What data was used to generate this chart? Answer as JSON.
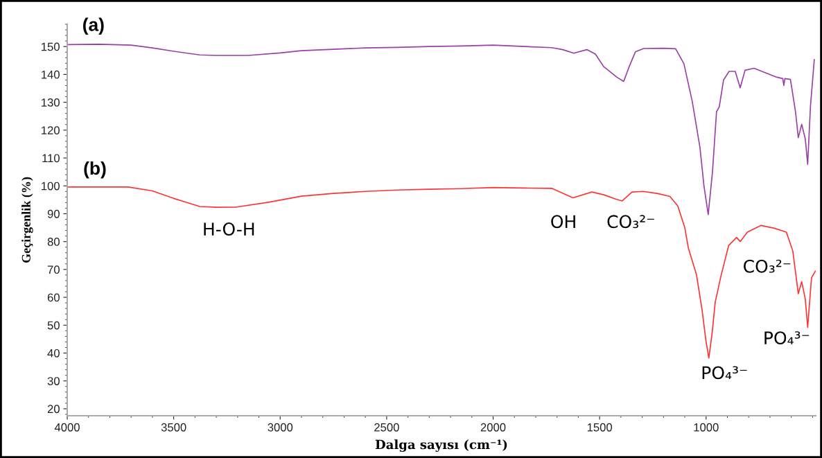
{
  "chart_data": {
    "type": "line",
    "xlabel": "Dalga sayısı (cm⁻¹)",
    "ylabel": "Geçirgenlik (%)",
    "xlim": [
      4000,
      485
    ],
    "ylim": [
      17.5,
      158
    ],
    "xticks": [
      4000,
      3500,
      3000,
      2500,
      2000,
      1500,
      1000
    ],
    "yticks": [
      20,
      30,
      40,
      50,
      60,
      70,
      80,
      90,
      100,
      110,
      120,
      130,
      140,
      150
    ],
    "grid": false,
    "legend": false,
    "marker": "none",
    "line_style": "solid",
    "series": [
      {
        "color": "#9b3fa8",
        "x": [
          4000,
          3850,
          3700,
          3600,
          3500,
          3378,
          3300,
          3150,
          3000,
          2900,
          2750,
          2600,
          2450,
          2300,
          2150,
          2000,
          1850,
          1725,
          1673,
          1621,
          1560,
          1520,
          1481,
          1419,
          1387,
          1360,
          1332,
          1293,
          1200,
          1143,
          1104,
          1065,
          1029,
          1010,
          990,
          970,
          951,
          938,
          918,
          892,
          863,
          840,
          817,
          775,
          668,
          640,
          635,
          630,
          604,
          580,
          567,
          551,
          534,
          523,
          510,
          492
        ],
        "values": [
          150.7,
          150.8,
          150.5,
          149.5,
          148.3,
          147,
          146.8,
          146.8,
          147.7,
          148.5,
          149,
          149.5,
          149.7,
          150,
          150.2,
          150.5,
          150,
          149.6,
          148.9,
          147.6,
          148.9,
          147.3,
          142.8,
          139,
          137.5,
          143,
          148.1,
          149.3,
          149.4,
          149.2,
          143.8,
          130.3,
          113.9,
          100,
          89.7,
          105,
          126.6,
          128.4,
          138,
          141.1,
          141.1,
          135.2,
          141.5,
          142.2,
          139,
          138.5,
          136,
          138.5,
          138.2,
          126.6,
          117.3,
          122.1,
          116.8,
          107.7,
          128.4,
          145.3
        ]
      },
      {
        "color": "#ff3333",
        "x": [
          4000,
          3850,
          3714,
          3600,
          3500,
          3378,
          3300,
          3203,
          3050,
          2900,
          2750,
          2600,
          2450,
          2300,
          2150,
          2000,
          1850,
          1725,
          1625,
          1537,
          1480,
          1423,
          1394,
          1348,
          1296,
          1230,
          1170,
          1133,
          1100,
          1083,
          1045,
          1019,
          1000,
          987,
          972,
          957,
          931,
          894,
          857,
          840,
          806,
          742,
          680,
          623,
          593,
          567,
          551,
          534,
          523,
          505,
          487
        ],
        "values": [
          99.6,
          99.6,
          99.6,
          98.2,
          95.5,
          92.6,
          92.3,
          92.4,
          94.2,
          96.3,
          97.3,
          98,
          98.5,
          98.8,
          99,
          99.4,
          99.2,
          99.1,
          95.7,
          97.8,
          96.8,
          95.2,
          94.6,
          97.8,
          98,
          97.3,
          96.2,
          92.8,
          85,
          77.6,
          68.1,
          55.5,
          44,
          38.2,
          47,
          58.3,
          67.4,
          78.6,
          81.5,
          80,
          83.4,
          85.8,
          84.8,
          83.4,
          76.7,
          61.3,
          65.6,
          59.3,
          49.2,
          67,
          69.4
        ]
      }
    ],
    "annotations": [
      "(a)",
      "(b)",
      "H-O-H",
      "OH",
      "CO₃²⁻",
      "PO₄³⁻",
      "CO₃²⁻",
      "PO₄³⁻"
    ]
  }
}
